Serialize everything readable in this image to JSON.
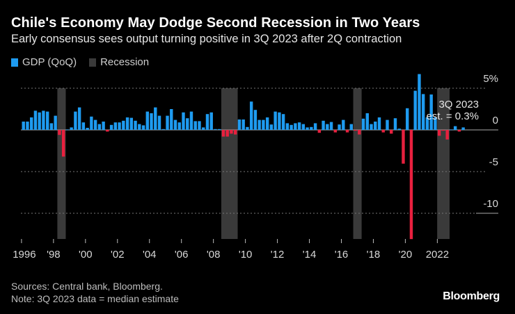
{
  "title": "Chile's Economy May Dodge Second Recession in Two Years",
  "subtitle": "Early consensus sees output turning positive in 3Q 2023 after 2Q contraction",
  "legend": [
    {
      "label": "GDP (QoQ)",
      "color": "#1e9bf0"
    },
    {
      "label": "Recession",
      "color": "#3a3a3a"
    }
  ],
  "footer": {
    "sources": "Sources: Central bank, Bloomberg.",
    "note": "Note: 3Q 2023 data = median estimate"
  },
  "logo": "Bloomberg",
  "chart_data": {
    "type": "bar",
    "start_quarter": "1996Q1",
    "end_quarter": "2023Q3",
    "series": [
      {
        "name": "GDP (QoQ)",
        "values": [
          1.0,
          1.0,
          1.5,
          2.3,
          2.1,
          2.3,
          2.2,
          0.8,
          1.7,
          -0.6,
          -3.2,
          0.05,
          0.3,
          2.2,
          2.7,
          0.9,
          0.25,
          1.6,
          1.2,
          0.7,
          1.0,
          -0.2,
          0.6,
          0.9,
          0.9,
          1.1,
          1.5,
          1.45,
          1.1,
          0.7,
          0.55,
          2.2,
          2.0,
          2.7,
          1.7,
          0.1,
          1.7,
          2.5,
          1.2,
          0.9,
          2.1,
          1.4,
          2.2,
          1.05,
          1.05,
          0.3,
          1.9,
          2.1,
          0.1,
          0.1,
          -0.8,
          -0.8,
          -0.45,
          -0.55,
          1.25,
          1.25,
          0.35,
          3.4,
          2.4,
          1.2,
          1.2,
          1.5,
          0.65,
          2.2,
          2.1,
          1.9,
          0.8,
          0.6,
          0.8,
          0.9,
          0.7,
          0.3,
          0.35,
          0.8,
          -0.35,
          1.1,
          0.7,
          0.95,
          -0.3,
          0.65,
          1.2,
          -0.3,
          0.7,
          -0.1,
          -0.55,
          1.35,
          2.0,
          0.7,
          1.0,
          1.5,
          -0.3,
          1.2,
          -0.45,
          1.4,
          0.15,
          -4.05,
          2.6,
          -13.1,
          4.7,
          6.7,
          4.3,
          1.5,
          4.25,
          1.5,
          -0.7,
          -0.1,
          -1.15,
          0.05,
          0.45,
          -0.2,
          0.3
        ]
      }
    ],
    "recessions": [
      [
        "1998Q2",
        "1998Q3"
      ],
      [
        "2008Q3",
        "2009Q2"
      ],
      [
        "2016Q4",
        "2017Q1"
      ],
      [
        "2022Q1",
        "2022Q3"
      ]
    ],
    "positive_color": "#1e9bf0",
    "negative_color": "#e8203e",
    "ylim": [
      -13.3,
      6.8
    ],
    "y_ticks": [
      {
        "value": 5,
        "label": "5%"
      },
      {
        "value": 0,
        "label": "0"
      },
      {
        "value": -5,
        "label": "-5"
      },
      {
        "value": -10,
        "label": "-10"
      }
    ],
    "x_ticks": [
      {
        "year": 1996,
        "label": "1996"
      },
      {
        "year": 1998,
        "label": "'98"
      },
      {
        "year": 2000,
        "label": "'00"
      },
      {
        "year": 2002,
        "label": "'02"
      },
      {
        "year": 2004,
        "label": "'04"
      },
      {
        "year": 2006,
        "label": "'06"
      },
      {
        "year": 2008,
        "label": "'08"
      },
      {
        "year": 2010,
        "label": "'10"
      },
      {
        "year": 2012,
        "label": "'12"
      },
      {
        "year": 2014,
        "label": "'14"
      },
      {
        "year": 2016,
        "label": "'16"
      },
      {
        "year": 2018,
        "label": "'18"
      },
      {
        "year": 2020,
        "label": "'20"
      },
      {
        "year": 2022,
        "label": "2022"
      }
    ],
    "annotation": {
      "line1": "3Q 2023",
      "line2": "est. = 0.3%"
    },
    "grid": "dotted horizontal"
  }
}
